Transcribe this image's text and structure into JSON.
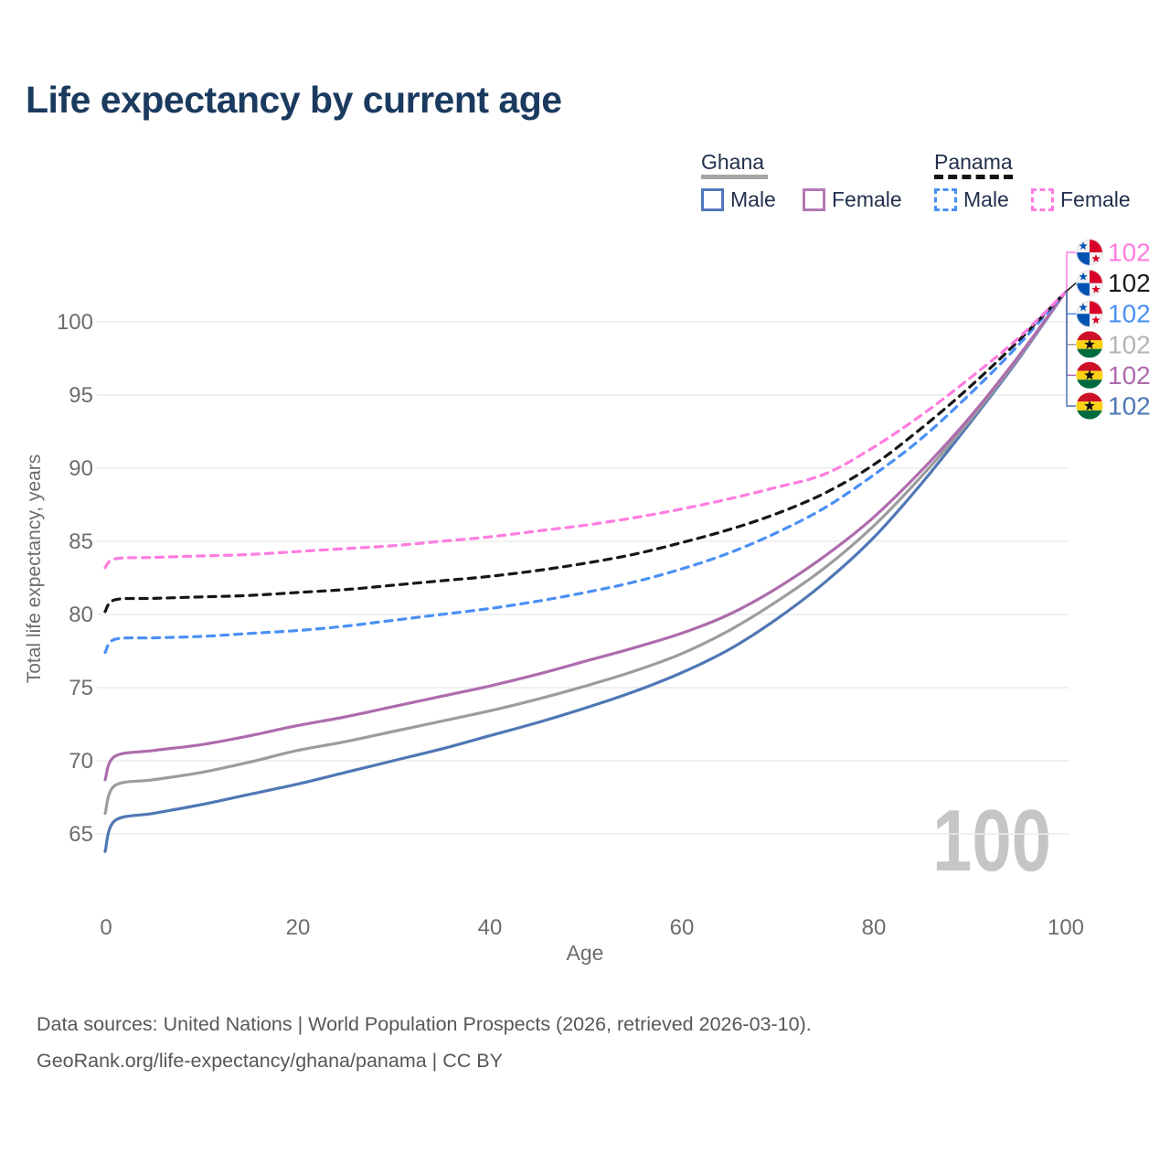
{
  "header": {
    "title": "Life expectancy by current age"
  },
  "legend": {
    "groups": [
      {
        "country": "Ghana",
        "underline_style": "solid",
        "underline_color": "#a6a6a6",
        "items": [
          {
            "label": "Male",
            "color": "#5078bc",
            "dash": false
          },
          {
            "label": "Female",
            "color": "#b279b2",
            "dash": false
          }
        ]
      },
      {
        "country": "Panama",
        "underline_style": "dashed",
        "underline_color": "#141414",
        "items": [
          {
            "label": "Male",
            "color": "#4a90f5",
            "dash": true
          },
          {
            "label": "Female",
            "color": "#ff7ce0",
            "dash": true
          }
        ]
      }
    ]
  },
  "chart_data": {
    "type": "line",
    "title": "Life expectancy by current age",
    "xlabel": "Age",
    "ylabel": "Total life expectancy, years",
    "x_ticks": [
      0,
      20,
      40,
      60,
      80,
      100
    ],
    "y_ticks": [
      65,
      70,
      75,
      80,
      85,
      90,
      95,
      100
    ],
    "xlim": [
      0,
      100
    ],
    "ylim": [
      65,
      102
    ],
    "grid": true,
    "legend_position": "top-right",
    "watermark": "100",
    "x": [
      0,
      1,
      5,
      10,
      15,
      20,
      25,
      30,
      35,
      40,
      45,
      50,
      55,
      60,
      65,
      70,
      75,
      80,
      85,
      90,
      95,
      100
    ],
    "series": [
      {
        "id": "panama-female",
        "country": "Panama",
        "group": "Female",
        "color": "#ff7ce0",
        "dash": true,
        "flag": "panama",
        "end_label": "102",
        "end_label_color": "#ff7ce0",
        "values": [
          83.2,
          83.8,
          83.9,
          84.0,
          84.1,
          84.3,
          84.5,
          84.7,
          85.0,
          85.3,
          85.7,
          86.1,
          86.6,
          87.2,
          87.9,
          88.7,
          89.6,
          91.4,
          93.6,
          96.1,
          98.8,
          102
        ]
      },
      {
        "id": "panama-total",
        "country": "Panama",
        "group": null,
        "color": "#161616",
        "dash": true,
        "flag": "panama",
        "end_label": "102",
        "end_label_color": "#1a1a1a",
        "values": [
          80.2,
          81.0,
          81.1,
          81.2,
          81.3,
          81.5,
          81.7,
          82.0,
          82.3,
          82.6,
          83.0,
          83.5,
          84.1,
          84.9,
          85.8,
          86.9,
          88.3,
          90.2,
          92.7,
          95.5,
          98.6,
          102
        ]
      },
      {
        "id": "panama-male",
        "country": "Panama",
        "group": "Male",
        "color": "#4a90f5",
        "dash": true,
        "flag": "panama",
        "end_label": "102",
        "end_label_color": "#4a90f5",
        "values": [
          77.4,
          78.3,
          78.4,
          78.5,
          78.7,
          78.9,
          79.2,
          79.6,
          80.0,
          80.4,
          80.9,
          81.5,
          82.2,
          83.1,
          84.2,
          85.6,
          87.3,
          89.5,
          92.0,
          95.0,
          98.3,
          102
        ]
      },
      {
        "id": "ghana-total",
        "country": "Ghana",
        "group": null,
        "color": "#9c9c9c",
        "dash": false,
        "flag": "ghana",
        "end_label": "102",
        "end_label_color": "#b5b5b5",
        "values": [
          66.4,
          68.3,
          68.7,
          69.2,
          69.9,
          70.7,
          71.3,
          72.0,
          72.7,
          73.4,
          74.2,
          75.1,
          76.1,
          77.3,
          78.9,
          80.9,
          83.2,
          86.0,
          89.4,
          93.2,
          97.4,
          102
        ]
      },
      {
        "id": "ghana-female",
        "country": "Ghana",
        "group": "Female",
        "color": "#ad6cad",
        "dash": false,
        "flag": "ghana",
        "end_label": "102",
        "end_label_color": "#ad6cad",
        "values": [
          68.7,
          70.3,
          70.7,
          71.1,
          71.7,
          72.4,
          73.0,
          73.7,
          74.4,
          75.1,
          75.9,
          76.8,
          77.7,
          78.7,
          80.0,
          81.8,
          84.0,
          86.6,
          89.8,
          93.4,
          97.5,
          102
        ]
      },
      {
        "id": "ghana-male",
        "country": "Ghana",
        "group": "Male",
        "color": "#4f77b5",
        "dash": false,
        "flag": "ghana",
        "end_label": "102",
        "end_label_color": "#4f77b5",
        "values": [
          63.8,
          65.9,
          66.4,
          67.0,
          67.7,
          68.4,
          69.2,
          70.0,
          70.8,
          71.7,
          72.6,
          73.6,
          74.7,
          76.0,
          77.6,
          79.7,
          82.2,
          85.2,
          88.9,
          93.0,
          97.3,
          102
        ]
      }
    ]
  },
  "footer": {
    "lines": [
      "Data sources: United Nations | World Population Prospects (2026, retrieved 2026-03-10).",
      "GeoRank.org/life-expectancy/ghana/panama | CC BY"
    ]
  }
}
